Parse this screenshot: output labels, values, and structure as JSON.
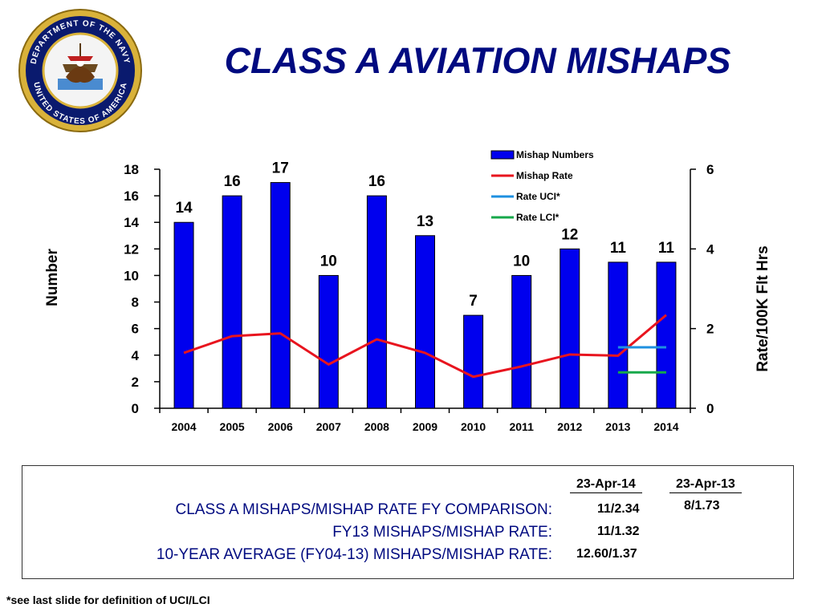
{
  "slide": {
    "title": "CLASS A AVIATION MISHAPS",
    "seal_text": "DEPARTMENT OF THE NAVY • UNITED STATES OF AMERICA",
    "footnote": "*see last slide for definition of UCI/LCI"
  },
  "chart_data": {
    "type": "bar",
    "categories": [
      "2004",
      "2005",
      "2006",
      "2007",
      "2008",
      "2009",
      "2010",
      "2011",
      "2012",
      "2013",
      "2014"
    ],
    "ylabel": "Number",
    "y2label": "Rate/100K Flt Hrs",
    "ylim": [
      0,
      18
    ],
    "yticks": [
      "0",
      "2",
      "4",
      "6",
      "8",
      "10",
      "12",
      "14",
      "16",
      "18"
    ],
    "y2lim": [
      0,
      6
    ],
    "y2ticks": [
      "0",
      "2",
      "4",
      "6"
    ],
    "grid": false,
    "legend_position": "top-right",
    "series": [
      {
        "name": "Mishap Numbers",
        "kind": "bar",
        "axis": "left",
        "color": "#0000ee",
        "values": [
          14,
          16,
          17,
          10,
          16,
          13,
          7,
          10,
          12,
          11,
          11
        ],
        "labels": [
          "14",
          "16",
          "17",
          "10",
          "16",
          "13",
          "7",
          "10",
          "12",
          "11",
          "11"
        ]
      },
      {
        "name": "Mishap Rate",
        "kind": "line",
        "axis": "right",
        "color": "#e8141e",
        "values": [
          1.39,
          1.81,
          1.88,
          1.1,
          1.73,
          1.39,
          0.79,
          1.05,
          1.35,
          1.32,
          2.34
        ]
      },
      {
        "name": "Rate UCI*",
        "kind": "segment",
        "axis": "right",
        "color": "#1e90e0",
        "x_start": "2013",
        "x_end": "2014",
        "value": 1.53
      },
      {
        "name": "Rate LCI*",
        "kind": "segment",
        "axis": "right",
        "color": "#16a84a",
        "x_start": "2013",
        "x_end": "2014",
        "value": 0.9
      }
    ]
  },
  "comparison": {
    "headers": [
      "23-Apr-14",
      "23-Apr-13"
    ],
    "rows": [
      {
        "label": "CLASS A MISHAPS/MISHAP RATE FY COMPARISON:",
        "current": "11/2.34",
        "previous": "8/1.73"
      },
      {
        "label": "FY13 MISHAPS/MISHAP RATE:",
        "current": "11/1.32",
        "previous": ""
      },
      {
        "label": "10-YEAR AVERAGE (FY04-13) MISHAPS/MISHAP RATE:",
        "current": "12.60/1.37",
        "previous": ""
      }
    ]
  }
}
